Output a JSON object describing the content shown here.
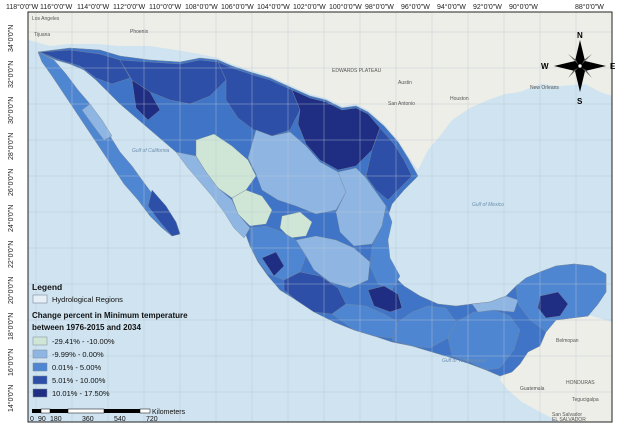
{
  "lon_labels": [
    "118°0'0\"W",
    "116°0'0\"W",
    "114°0'0\"W",
    "112°0'0\"W",
    "110°0'0\"W",
    "108°0'0\"W",
    "106°0'0\"W",
    "104°0'0\"W",
    "102°0'0\"W",
    "100°0'0\"W",
    "98°0'0\"W",
    "96°0'0\"W",
    "94°0'0\"W",
    "92°0'0\"W",
    "90°0'0\"W",
    "88°0'0\"W"
  ],
  "lat_labels": [
    "34°0'0\"N",
    "32°0'0\"N",
    "30°0'0\"N",
    "28°0'0\"N",
    "26°0'0\"N",
    "24°0'0\"N",
    "22°0'0\"N",
    "20°0'0\"N",
    "18°0'0\"N",
    "16°0'0\"N",
    "14°0'0\"N"
  ],
  "places": [
    "Los Angeles",
    "Tijuana",
    "Phoenix",
    "Austin",
    "San Antonio",
    "Houston",
    "New Orleans",
    "EDWARDS PLATEAU",
    "Belmopan",
    "Guatemala",
    "HONDURAS",
    "Tegucigalpa",
    "San Salvador",
    "EL SALVADOR",
    "Gulf of California",
    "Gulf of Mexico",
    "Gulf of Tehuantepec"
  ],
  "legend": {
    "title": "Legend",
    "regions_label": "Hydrological Regions",
    "subtitle_line1": "Change percent in Minimum temperature",
    "subtitle_line2": "between 1976-2015 and 2034",
    "classes": [
      {
        "label": "-29.41% - -10.00%",
        "color": "#cfe6d6"
      },
      {
        "label": "-9.99% - 0.00%",
        "color": "#8fb6e3"
      },
      {
        "label": "0.01% - 5.00%",
        "color": "#4f86d2"
      },
      {
        "label": "5.01% - 10.00%",
        "color": "#2e4fa8"
      },
      {
        "label": "10.01% - 17.50%",
        "color": "#1f2e82"
      }
    ]
  },
  "scale": {
    "unit": "Kilometers",
    "ticks": [
      "0",
      "90",
      "180",
      "360",
      "540",
      "720"
    ]
  },
  "compass": {
    "n": "N",
    "s": "S",
    "e": "E",
    "w": "W"
  },
  "colors": {
    "ocean": "#cfe3f0",
    "land": "#eeeee8",
    "frame": "#222222"
  }
}
